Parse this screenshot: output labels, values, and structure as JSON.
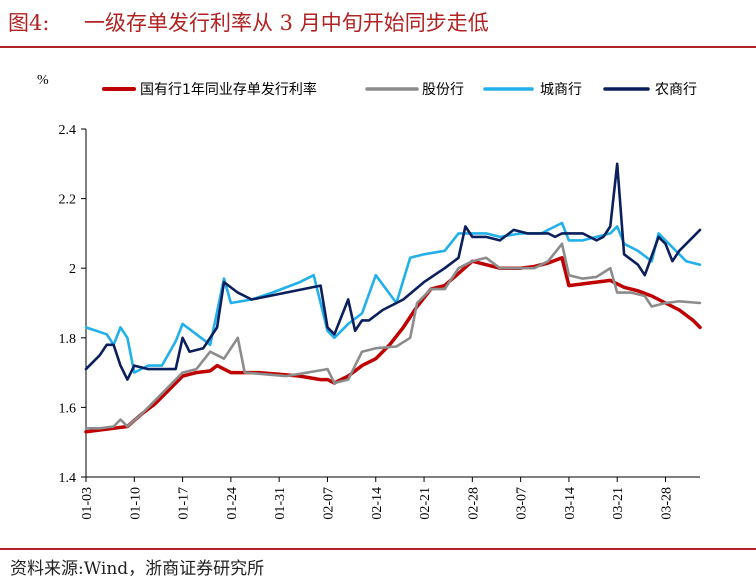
{
  "header": {
    "figure_label": "图4:",
    "title": "一级存单发行利率从 3 月中旬开始同步走低"
  },
  "footer": {
    "source": "资料来源:Wind，浙商证券研究所"
  },
  "chart_data": {
    "type": "line",
    "title": "一级存单发行利率从 3 月中旬开始同步走低",
    "ylabel": "%",
    "xlabel": "",
    "ylim": [
      1.4,
      2.4
    ],
    "yticks": [
      1.4,
      1.6,
      1.8,
      2.0,
      2.2,
      2.4
    ],
    "ytick_labels": [
      "1.4",
      "1.6",
      "1.8",
      "2",
      "2.2",
      "2.4"
    ],
    "xticks": [
      "01-03",
      "01-10",
      "01-17",
      "01-24",
      "01-31",
      "02-07",
      "02-14",
      "02-21",
      "02-28",
      "03-07",
      "03-14",
      "03-21",
      "03-28"
    ],
    "x_range": [
      "01-03",
      "04-02"
    ],
    "grid": false,
    "legend_position": "top",
    "series": [
      {
        "name": "国有行1年同业存单发行利率",
        "color": "#c00000",
        "points": [
          [
            "01-03",
            1.53
          ],
          [
            "01-05",
            1.535
          ],
          [
            "01-07",
            1.54
          ],
          [
            "01-09",
            1.545
          ],
          [
            "01-11",
            1.58
          ],
          [
            "01-13",
            1.61
          ],
          [
            "01-15",
            1.65
          ],
          [
            "01-17",
            1.69
          ],
          [
            "01-19",
            1.7
          ],
          [
            "01-21",
            1.705
          ],
          [
            "01-22",
            1.72
          ],
          [
            "01-24",
            1.7
          ],
          [
            "01-26",
            1.7
          ],
          [
            "01-28",
            1.7
          ],
          [
            "01-31",
            1.695
          ],
          [
            "02-03",
            1.69
          ],
          [
            "02-06",
            1.68
          ],
          [
            "02-07",
            1.68
          ],
          [
            "02-08",
            1.67
          ],
          [
            "02-10",
            1.69
          ],
          [
            "02-12",
            1.72
          ],
          [
            "02-14",
            1.74
          ],
          [
            "02-16",
            1.78
          ],
          [
            "02-18",
            1.83
          ],
          [
            "02-20",
            1.89
          ],
          [
            "02-22",
            1.94
          ],
          [
            "02-24",
            1.95
          ],
          [
            "02-26",
            1.985
          ],
          [
            "02-28",
            2.02
          ],
          [
            "03-02",
            2.01
          ],
          [
            "03-04",
            2.0
          ],
          [
            "03-07",
            2.0
          ],
          [
            "03-09",
            2.005
          ],
          [
            "03-11",
            2.015
          ],
          [
            "03-13",
            2.03
          ],
          [
            "03-14",
            1.95
          ],
          [
            "03-16",
            1.955
          ],
          [
            "03-18",
            1.96
          ],
          [
            "03-20",
            1.965
          ],
          [
            "03-22",
            1.945
          ],
          [
            "03-24",
            1.935
          ],
          [
            "03-26",
            1.92
          ],
          [
            "03-28",
            1.9
          ],
          [
            "03-30",
            1.88
          ],
          [
            "04-01",
            1.85
          ],
          [
            "04-02",
            1.83
          ]
        ]
      },
      {
        "name": "股份行",
        "color": "#8c8c8c",
        "points": [
          [
            "01-03",
            1.54
          ],
          [
            "01-05",
            1.54
          ],
          [
            "01-07",
            1.545
          ],
          [
            "01-08",
            1.565
          ],
          [
            "01-09",
            1.545
          ],
          [
            "01-11",
            1.58
          ],
          [
            "01-13",
            1.62
          ],
          [
            "01-15",
            1.66
          ],
          [
            "01-17",
            1.7
          ],
          [
            "01-19",
            1.71
          ],
          [
            "01-21",
            1.76
          ],
          [
            "01-23",
            1.74
          ],
          [
            "01-25",
            1.8
          ],
          [
            "01-26",
            1.7
          ],
          [
            "01-29",
            1.695
          ],
          [
            "02-01",
            1.69
          ],
          [
            "02-04",
            1.7
          ],
          [
            "02-07",
            1.71
          ],
          [
            "02-08",
            1.67
          ],
          [
            "02-10",
            1.68
          ],
          [
            "02-12",
            1.76
          ],
          [
            "02-14",
            1.77
          ],
          [
            "02-17",
            1.775
          ],
          [
            "02-19",
            1.8
          ],
          [
            "02-20",
            1.9
          ],
          [
            "02-22",
            1.94
          ],
          [
            "02-24",
            1.94
          ],
          [
            "02-26",
            2.0
          ],
          [
            "02-28",
            2.02
          ],
          [
            "03-02",
            2.03
          ],
          [
            "03-04",
            2.0
          ],
          [
            "03-07",
            2.0
          ],
          [
            "03-09",
            2.0
          ],
          [
            "03-11",
            2.02
          ],
          [
            "03-13",
            2.07
          ],
          [
            "03-14",
            1.98
          ],
          [
            "03-16",
            1.97
          ],
          [
            "03-18",
            1.975
          ],
          [
            "03-20",
            2.0
          ],
          [
            "03-21",
            1.93
          ],
          [
            "03-23",
            1.93
          ],
          [
            "03-25",
            1.92
          ],
          [
            "03-26",
            1.89
          ],
          [
            "03-28",
            1.9
          ],
          [
            "03-30",
            1.905
          ],
          [
            "04-02",
            1.9
          ]
        ]
      },
      {
        "name": "城商行",
        "color": "#21b0ea",
        "points": [
          [
            "01-03",
            1.83
          ],
          [
            "01-06",
            1.81
          ],
          [
            "01-07",
            1.78
          ],
          [
            "01-08",
            1.83
          ],
          [
            "01-09",
            1.8
          ],
          [
            "01-10",
            1.7
          ],
          [
            "01-12",
            1.72
          ],
          [
            "01-14",
            1.72
          ],
          [
            "01-16",
            1.79
          ],
          [
            "01-17",
            1.84
          ],
          [
            "01-19",
            1.81
          ],
          [
            "01-21",
            1.78
          ],
          [
            "01-23",
            1.97
          ],
          [
            "01-24",
            1.9
          ],
          [
            "01-27",
            1.91
          ],
          [
            "01-30",
            1.93
          ],
          [
            "02-03",
            1.96
          ],
          [
            "02-05",
            1.98
          ],
          [
            "02-07",
            1.82
          ],
          [
            "02-08",
            1.8
          ],
          [
            "02-10",
            1.84
          ],
          [
            "02-12",
            1.87
          ],
          [
            "02-14",
            1.98
          ],
          [
            "02-17",
            1.9
          ],
          [
            "02-19",
            2.03
          ],
          [
            "02-21",
            2.04
          ],
          [
            "02-24",
            2.05
          ],
          [
            "02-26",
            2.1
          ],
          [
            "02-28",
            2.1
          ],
          [
            "03-02",
            2.1
          ],
          [
            "03-04",
            2.09
          ],
          [
            "03-07",
            2.1
          ],
          [
            "03-10",
            2.1
          ],
          [
            "03-12",
            2.12
          ],
          [
            "03-13",
            2.13
          ],
          [
            "03-14",
            2.08
          ],
          [
            "03-16",
            2.08
          ],
          [
            "03-18",
            2.09
          ],
          [
            "03-20",
            2.1
          ],
          [
            "03-21",
            2.12
          ],
          [
            "03-22",
            2.07
          ],
          [
            "03-24",
            2.05
          ],
          [
            "03-26",
            2.02
          ],
          [
            "03-27",
            2.1
          ],
          [
            "03-29",
            2.06
          ],
          [
            "03-31",
            2.02
          ],
          [
            "04-02",
            2.01
          ]
        ]
      },
      {
        "name": "农商行",
        "color": "#0b1f5c",
        "points": [
          [
            "01-03",
            1.71
          ],
          [
            "01-05",
            1.75
          ],
          [
            "01-06",
            1.78
          ],
          [
            "01-07",
            1.78
          ],
          [
            "01-08",
            1.72
          ],
          [
            "01-09",
            1.68
          ],
          [
            "01-10",
            1.72
          ],
          [
            "01-12",
            1.71
          ],
          [
            "01-14",
            1.71
          ],
          [
            "01-16",
            1.71
          ],
          [
            "01-17",
            1.8
          ],
          [
            "01-18",
            1.76
          ],
          [
            "01-20",
            1.77
          ],
          [
            "01-22",
            1.83
          ],
          [
            "01-23",
            1.96
          ],
          [
            "01-25",
            1.93
          ],
          [
            "01-27",
            1.91
          ],
          [
            "02-06",
            1.95
          ],
          [
            "02-07",
            1.83
          ],
          [
            "02-08",
            1.81
          ],
          [
            "02-09",
            1.86
          ],
          [
            "02-10",
            1.91
          ],
          [
            "02-11",
            1.82
          ],
          [
            "02-12",
            1.85
          ],
          [
            "02-13",
            1.85
          ],
          [
            "02-15",
            1.88
          ],
          [
            "02-18",
            1.91
          ],
          [
            "02-21",
            1.96
          ],
          [
            "02-24",
            2.0
          ],
          [
            "02-26",
            2.03
          ],
          [
            "02-27",
            2.12
          ],
          [
            "02-28",
            2.09
          ],
          [
            "03-02",
            2.09
          ],
          [
            "03-04",
            2.08
          ],
          [
            "03-06",
            2.11
          ],
          [
            "03-08",
            2.1
          ],
          [
            "03-11",
            2.1
          ],
          [
            "03-12",
            2.09
          ],
          [
            "03-13",
            2.1
          ],
          [
            "03-16",
            2.1
          ],
          [
            "03-18",
            2.08
          ],
          [
            "03-19",
            2.09
          ],
          [
            "03-20",
            2.12
          ],
          [
            "03-21",
            2.3
          ],
          [
            "03-22",
            2.04
          ],
          [
            "03-24",
            2.01
          ],
          [
            "03-25",
            1.98
          ],
          [
            "03-27",
            2.09
          ],
          [
            "03-28",
            2.07
          ],
          [
            "03-29",
            2.02
          ],
          [
            "03-30",
            2.05
          ],
          [
            "04-02",
            2.11
          ]
        ]
      }
    ]
  }
}
